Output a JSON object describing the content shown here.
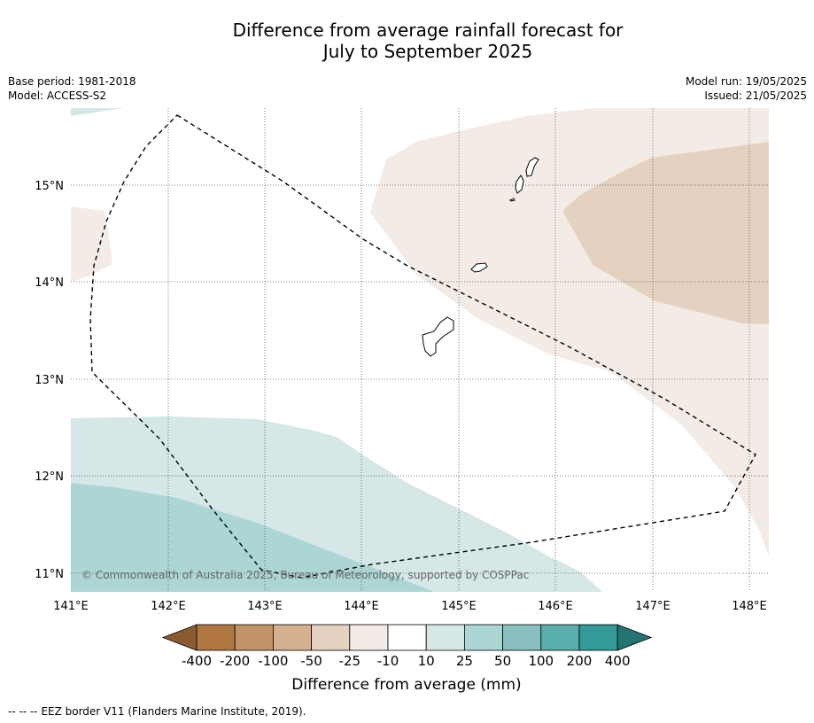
{
  "title_line1": "Difference from average rainfall forecast for",
  "title_line2": "July to September 2025",
  "base_period": "Base period: 1981-2018",
  "model": "Model: ACCESS-S2",
  "model_run": "Model run: 19/05/2025",
  "issued": "Issued: 21/05/2025",
  "map": {
    "lat_ticks": [
      "15°N",
      "14°N",
      "13°N",
      "12°N",
      "11°N"
    ],
    "lon_ticks": [
      "141°E",
      "142°E",
      "143°E",
      "144°E",
      "145°E",
      "146°E",
      "147°E",
      "148°E"
    ],
    "copyright": "© Commonwealth of Australia 2025, Bureau of Meteorology, supported by COSPPac"
  },
  "colorbar": {
    "labels": [
      "-400",
      "-200",
      "-100",
      "-50",
      "-25",
      "-10",
      "10",
      "25",
      "50",
      "100",
      "200",
      "400"
    ],
    "colors": [
      "#8c5a30",
      "#b07840",
      "#c29366",
      "#d5b190",
      "#e5d1bf",
      "#f3ece6",
      "#ffffff",
      "#d5e8e7",
      "#acd6d4",
      "#87c0bf",
      "#5aaeac",
      "#349a98",
      "#237473"
    ],
    "title": "Difference from average (mm)"
  },
  "footer": "--  --  -- EEZ border V11 (Flanders Marine Institute, 2019)."
}
